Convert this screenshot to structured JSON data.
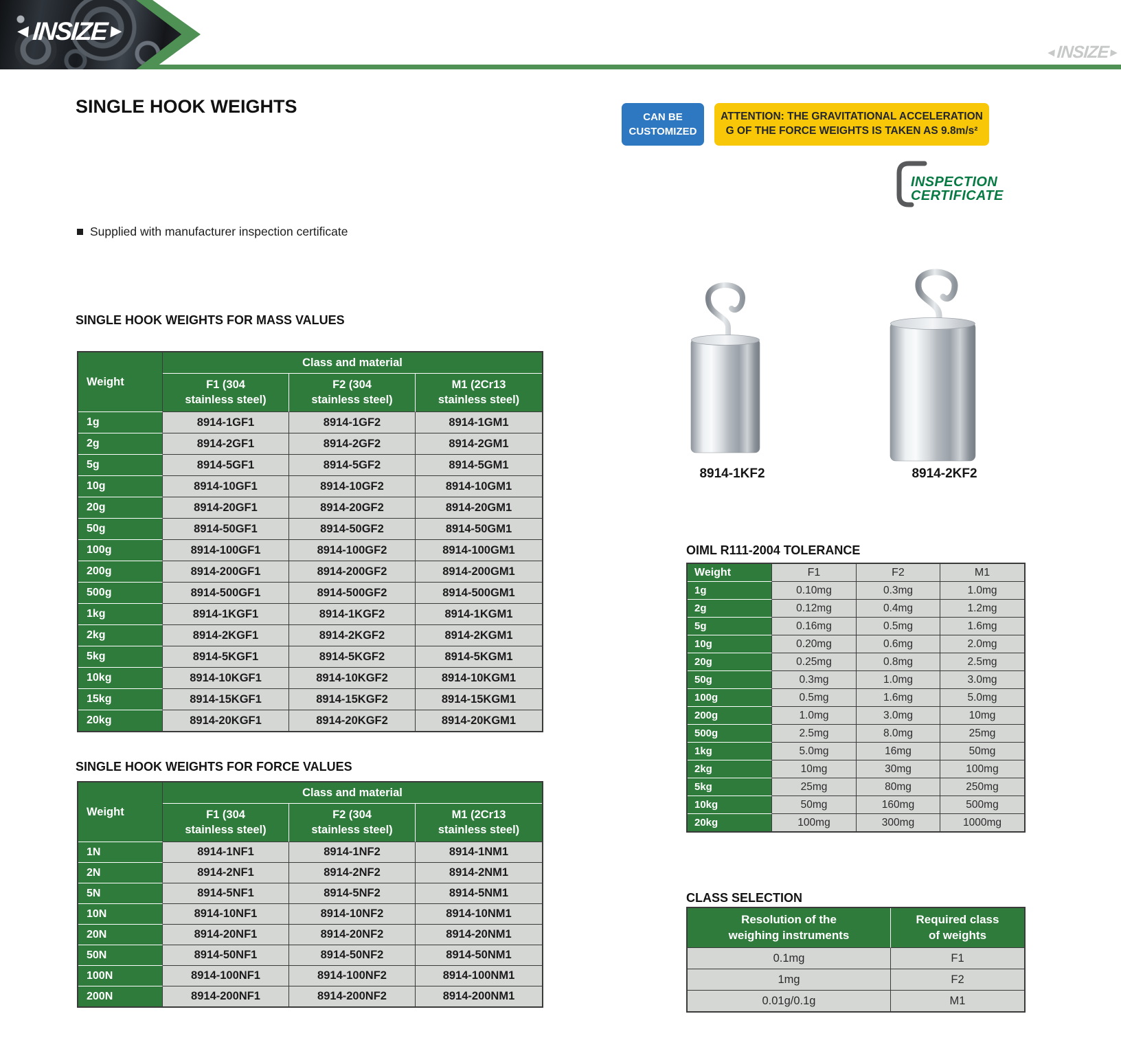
{
  "colors": {
    "brand_green": "#4f9054",
    "table_green": "#2e7b3b",
    "cell_gray": "#d5d7d5",
    "badge_blue": "#2e77c1",
    "badge_yellow": "#f7c708",
    "cert_green": "#077a43"
  },
  "header": {
    "brand": "INSIZE",
    "arrow_left": "◄",
    "arrow_right": "►",
    "watermark": "INSIZE"
  },
  "page": {
    "title": "SINGLE HOOK WEIGHTS",
    "bullet": "Supplied with manufacturer inspection certificate"
  },
  "badges": {
    "customized": {
      "line1": "CAN BE",
      "line2": "CUSTOMIZED"
    },
    "attention": {
      "line1": "ATTENTION: THE GRAVITATIONAL ACCELERATION",
      "line2": "G OF THE FORCE WEIGHTS IS TAKEN AS 9.8m/s²"
    },
    "inspection": {
      "line1": "INSPECTION",
      "line2": "CERTIFICATE"
    }
  },
  "products": [
    {
      "code": "8914-1KF2"
    },
    {
      "code": "8914-2KF2"
    }
  ],
  "mass_table": {
    "title": "SINGLE HOOK WEIGHTS FOR MASS VALUES",
    "header": {
      "weight": "Weight",
      "group": "Class and material",
      "cols": [
        {
          "line1": "F1 (304",
          "line2": "stainless steel)"
        },
        {
          "line1": "F2 (304",
          "line2": "stainless steel)"
        },
        {
          "line1": "M1 (2Cr13",
          "line2": "stainless steel)"
        }
      ]
    },
    "rows": [
      [
        "1g",
        "8914-1GF1",
        "8914-1GF2",
        "8914-1GM1"
      ],
      [
        "2g",
        "8914-2GF1",
        "8914-2GF2",
        "8914-2GM1"
      ],
      [
        "5g",
        "8914-5GF1",
        "8914-5GF2",
        "8914-5GM1"
      ],
      [
        "10g",
        "8914-10GF1",
        "8914-10GF2",
        "8914-10GM1"
      ],
      [
        "20g",
        "8914-20GF1",
        "8914-20GF2",
        "8914-20GM1"
      ],
      [
        "50g",
        "8914-50GF1",
        "8914-50GF2",
        "8914-50GM1"
      ],
      [
        "100g",
        "8914-100GF1",
        "8914-100GF2",
        "8914-100GM1"
      ],
      [
        "200g",
        "8914-200GF1",
        "8914-200GF2",
        "8914-200GM1"
      ],
      [
        "500g",
        "8914-500GF1",
        "8914-500GF2",
        "8914-500GM1"
      ],
      [
        "1kg",
        "8914-1KGF1",
        "8914-1KGF2",
        "8914-1KGM1"
      ],
      [
        "2kg",
        "8914-2KGF1",
        "8914-2KGF2",
        "8914-2KGM1"
      ],
      [
        "5kg",
        "8914-5KGF1",
        "8914-5KGF2",
        "8914-5KGM1"
      ],
      [
        "10kg",
        "8914-10KGF1",
        "8914-10KGF2",
        "8914-10KGM1"
      ],
      [
        "15kg",
        "8914-15KGF1",
        "8914-15KGF2",
        "8914-15KGM1"
      ],
      [
        "20kg",
        "8914-20KGF1",
        "8914-20KGF2",
        "8914-20KGM1"
      ]
    ]
  },
  "force_table": {
    "title": "SINGLE HOOK WEIGHTS FOR FORCE VALUES",
    "header": {
      "weight": "Weight",
      "group": "Class and material",
      "cols": [
        {
          "line1": "F1 (304",
          "line2": "stainless steel)"
        },
        {
          "line1": "F2 (304",
          "line2": "stainless steel)"
        },
        {
          "line1": "M1 (2Cr13",
          "line2": "stainless steel)"
        }
      ]
    },
    "rows": [
      [
        "1N",
        "8914-1NF1",
        "8914-1NF2",
        "8914-1NM1"
      ],
      [
        "2N",
        "8914-2NF1",
        "8914-2NF2",
        "8914-2NM1"
      ],
      [
        "5N",
        "8914-5NF1",
        "8914-5NF2",
        "8914-5NM1"
      ],
      [
        "10N",
        "8914-10NF1",
        "8914-10NF2",
        "8914-10NM1"
      ],
      [
        "20N",
        "8914-20NF1",
        "8914-20NF2",
        "8914-20NM1"
      ],
      [
        "50N",
        "8914-50NF1",
        "8914-50NF2",
        "8914-50NM1"
      ],
      [
        "100N",
        "8914-100NF1",
        "8914-100NF2",
        "8914-100NM1"
      ],
      [
        "200N",
        "8914-200NF1",
        "8914-200NF2",
        "8914-200NM1"
      ]
    ]
  },
  "tolerance_table": {
    "title": "OIML R111-2004 TOLERANCE",
    "header": {
      "weight": "Weight",
      "cols": [
        "F1",
        "F2",
        "M1"
      ]
    },
    "rows": [
      [
        "1g",
        "0.10mg",
        "0.3mg",
        "1.0mg"
      ],
      [
        "2g",
        "0.12mg",
        "0.4mg",
        "1.2mg"
      ],
      [
        "5g",
        "0.16mg",
        "0.5mg",
        "1.6mg"
      ],
      [
        "10g",
        "0.20mg",
        "0.6mg",
        "2.0mg"
      ],
      [
        "20g",
        "0.25mg",
        "0.8mg",
        "2.5mg"
      ],
      [
        "50g",
        "0.3mg",
        "1.0mg",
        "3.0mg"
      ],
      [
        "100g",
        "0.5mg",
        "1.6mg",
        "5.0mg"
      ],
      [
        "200g",
        "1.0mg",
        "3.0mg",
        "10mg"
      ],
      [
        "500g",
        "2.5mg",
        "8.0mg",
        "25mg"
      ],
      [
        "1kg",
        "5.0mg",
        "16mg",
        "50mg"
      ],
      [
        "2kg",
        "10mg",
        "30mg",
        "100mg"
      ],
      [
        "5kg",
        "25mg",
        "80mg",
        "250mg"
      ],
      [
        "10kg",
        "50mg",
        "160mg",
        "500mg"
      ],
      [
        "20kg",
        "100mg",
        "300mg",
        "1000mg"
      ]
    ]
  },
  "class_table": {
    "title": "CLASS SELECTION",
    "header": [
      {
        "line1": "Resolution of the",
        "line2": "weighing instruments"
      },
      {
        "line1": "Required class",
        "line2": "of weights"
      }
    ],
    "rows": [
      [
        "0.1mg",
        "F1"
      ],
      [
        "1mg",
        "F2"
      ],
      [
        "0.01g/0.1g",
        "M1"
      ]
    ]
  }
}
